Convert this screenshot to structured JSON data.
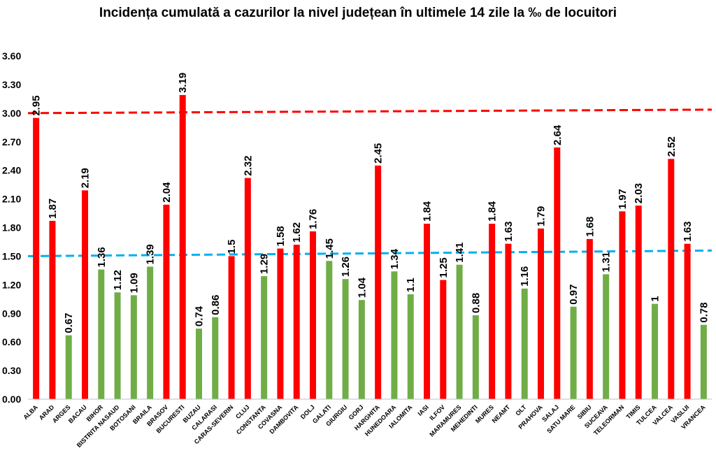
{
  "chart_data": {
    "type": "bar",
    "title": "Incidența cumulată a cazurilor la nivel județean în ultimele 14 zile la ‰ de locuitori",
    "xlabel": "",
    "ylabel": "",
    "ylim": [
      0,
      3.6
    ],
    "yticks": [
      "0.00",
      "0.30",
      "0.60",
      "0.90",
      "1.20",
      "1.50",
      "1.80",
      "2.10",
      "2.40",
      "2.70",
      "3.00",
      "3.30",
      "3.60"
    ],
    "grid": false,
    "categories": [
      "ALBA",
      "ARAD",
      "ARGES",
      "BACAU",
      "BIHOR",
      "BISTRITA NASAUD",
      "BOTOSANI",
      "BRAILA",
      "BRASOV",
      "BUCURESTI",
      "BUZAU",
      "CALARASI",
      "CARAS-SEVERIN",
      "CLUJ",
      "CONSTANTA",
      "COVASNA",
      "DAMBOVITA",
      "DOLJ",
      "GALATI",
      "GIURGIU",
      "GORJ",
      "HARGHITA",
      "HUNEDOARA",
      "IALOMITA",
      "IASI",
      "ILFOV",
      "MARAMURES",
      "MEHEDINTI",
      "MURES",
      "NEAMT",
      "OLT",
      "PRAHOVA",
      "SALAJ",
      "SATU MARE",
      "SIBIU",
      "SUCEAVA",
      "TELEORMAN",
      "TIMIS",
      "TULCEA",
      "VALCEA",
      "VASLUI",
      "VRANCEA"
    ],
    "values": [
      2.95,
      1.87,
      0.67,
      2.19,
      1.36,
      1.12,
      1.09,
      1.39,
      2.04,
      3.19,
      0.74,
      0.86,
      1.5,
      2.32,
      1.29,
      1.58,
      1.62,
      1.76,
      1.45,
      1.26,
      1.04,
      2.45,
      1.34,
      1.1,
      1.84,
      1.25,
      1.41,
      0.88,
      1.84,
      1.63,
      1.16,
      1.79,
      2.64,
      0.97,
      1.68,
      1.31,
      1.97,
      2.03,
      1,
      2.52,
      1.63,
      0.78
    ],
    "value_labels": [
      "2.95",
      "1.87",
      "0.67",
      "2.19",
      "1.36",
      "1.12",
      "1.09",
      "1.39",
      "2.04",
      "3.19",
      "0.74",
      "0.86",
      "1.5",
      "2.32",
      "1.29",
      "1.58",
      "1.62",
      "1.76",
      "1.45",
      "1.26",
      "1.04",
      "2.45",
      "1.34",
      "1.1",
      "1.84",
      "1.25",
      "1.41",
      "0.88",
      "1.84",
      "1.63",
      "1.16",
      "1.79",
      "2.64",
      "0.97",
      "1.68",
      "1.31",
      "1.97",
      "2.03",
      "1",
      "2.52",
      "1.63",
      "0.78"
    ],
    "bar_colors": [
      "red",
      "red",
      "green",
      "red",
      "green",
      "green",
      "green",
      "green",
      "red",
      "red",
      "green",
      "green",
      "red",
      "red",
      "green",
      "red",
      "red",
      "red",
      "green",
      "green",
      "green",
      "red",
      "green",
      "green",
      "red",
      "red",
      "green",
      "green",
      "red",
      "red",
      "green",
      "red",
      "red",
      "green",
      "red",
      "green",
      "red",
      "red",
      "green",
      "red",
      "red",
      "green"
    ],
    "reference_lines": [
      {
        "value": 3.0,
        "color": "#ff0000",
        "style": "dashed"
      },
      {
        "value": 1.5,
        "color": "#00b0f0",
        "style": "dashed"
      }
    ]
  },
  "colors": {
    "red": "#ff0000",
    "green": "#70ad47",
    "axis": "#bfbfbf"
  }
}
